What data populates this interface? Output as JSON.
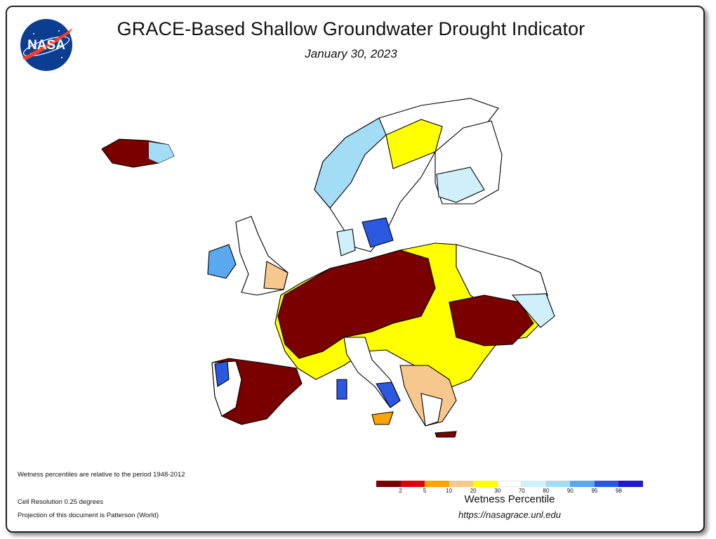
{
  "title": "GRACE-Based Shallow Groundwater Drought Indicator",
  "date": "January 30, 2023",
  "logo_text": "NASA",
  "notes": {
    "period": "Wetness percentiles are relative to the period 1948-2012",
    "resolution": "Cell Resolution 0.25 degrees",
    "projection": "Projection of this document is Patterson (World)"
  },
  "legend": {
    "title": "Wetness Percentile",
    "colors": [
      "#7a0000",
      "#e0000d",
      "#ffa500",
      "#f6c88e",
      "#ffff00",
      "#ffffff",
      "#cfeffb",
      "#a2dcf5",
      "#5aa8ef",
      "#2a59e0",
      "#1c1ccc"
    ],
    "ticks": [
      "2",
      "5",
      "10",
      "20",
      "30",
      "70",
      "80",
      "90",
      "95",
      "98"
    ]
  },
  "url": "https://nasagrace.unl.edu"
}
